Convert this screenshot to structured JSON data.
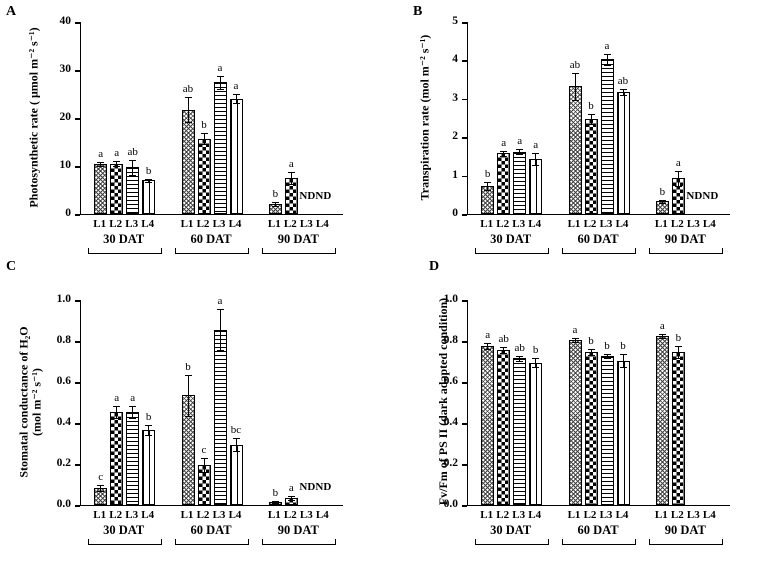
{
  "colors": {
    "foreground": "#000000",
    "background": "#ffffff"
  },
  "chart_data": [
    {
      "id": "A",
      "type": "bar",
      "panel_label": "A",
      "ylabel_lines": [
        "Photosynthetic rate ( μmol m⁻² s⁻¹)"
      ],
      "ylim": [
        0,
        40
      ],
      "yticks": [
        "0",
        "10",
        "20",
        "30",
        "40"
      ],
      "groups": [
        "30 DAT",
        "60 DAT",
        "90 DAT"
      ],
      "series": [
        "L1",
        "L2",
        "L3",
        "L4"
      ],
      "values": [
        [
          10.2,
          10.3,
          9.5,
          6.8
        ],
        [
          21.5,
          15.5,
          27.2,
          23.8
        ],
        [
          1.8,
          7.3,
          null,
          null
        ]
      ],
      "errors": [
        [
          0.5,
          0.5,
          1.6,
          0.3
        ],
        [
          2.6,
          1.2,
          1.3,
          0.9
        ],
        [
          0.4,
          1.3,
          null,
          null
        ]
      ],
      "letters": [
        [
          "a",
          "a",
          "ab",
          "b"
        ],
        [
          "ab",
          "b",
          "a",
          "a"
        ],
        [
          "b",
          "a",
          "ND",
          "ND"
        ]
      ]
    },
    {
      "id": "B",
      "type": "bar",
      "panel_label": "B",
      "ylabel_lines": [
        "Transpiration rate (mol m⁻² s⁻¹)"
      ],
      "ylim": [
        0,
        5
      ],
      "yticks": [
        "0",
        "1",
        "2",
        "3",
        "4",
        "5"
      ],
      "groups": [
        "30 DAT",
        "60 DAT",
        "90 DAT"
      ],
      "series": [
        "L1",
        "L2",
        "L3",
        "L4"
      ],
      "values": [
        [
          0.7,
          1.55,
          1.6,
          1.4
        ],
        [
          3.3,
          2.45,
          4.0,
          3.15
        ],
        [
          0.3,
          0.9,
          null,
          null
        ]
      ],
      "errors": [
        [
          0.1,
          0.07,
          0.07,
          0.15
        ],
        [
          0.35,
          0.12,
          0.15,
          0.08
        ],
        [
          0.05,
          0.2,
          null,
          null
        ]
      ],
      "letters": [
        [
          "b",
          "a",
          "a",
          "a"
        ],
        [
          "ab",
          "b",
          "a",
          "ab"
        ],
        [
          "b",
          "a",
          "ND",
          "ND"
        ]
      ]
    },
    {
      "id": "C",
      "type": "bar",
      "panel_label": "C",
      "ylabel_lines": [
        "Stomatal conductance of H₂O",
        "(mol m⁻² s⁻¹)"
      ],
      "ylim": [
        0,
        1.0
      ],
      "yticks": [
        "0.0",
        "0.2",
        "0.4",
        "0.6",
        "0.8",
        "1.0"
      ],
      "groups": [
        "30 DAT",
        "60 DAT",
        "90 DAT"
      ],
      "series": [
        "L1",
        "L2",
        "L3",
        "L4"
      ],
      "values": [
        [
          0.08,
          0.45,
          0.45,
          0.36
        ],
        [
          0.53,
          0.19,
          0.85,
          0.29
        ],
        [
          0.01,
          0.03,
          null,
          null
        ]
      ],
      "errors": [
        [
          0.015,
          0.03,
          0.03,
          0.025
        ],
        [
          0.1,
          0.035,
          0.1,
          0.03
        ],
        [
          0.005,
          0.01,
          null,
          null
        ]
      ],
      "letters": [
        [
          "c",
          "a",
          "a",
          "b"
        ],
        [
          "b",
          "c",
          "a",
          "bc"
        ],
        [
          "b",
          "a",
          "ND",
          "ND"
        ]
      ]
    },
    {
      "id": "D",
      "type": "bar",
      "panel_label": "D",
      "ylabel_lines": [
        "Fv/Fm of PS II (dark adapted condition)"
      ],
      "ylim": [
        0,
        1.0
      ],
      "yticks": [
        "0.0",
        "0.2",
        "0.4",
        "0.6",
        "0.8",
        "1.0"
      ],
      "groups": [
        "30 DAT",
        "60 DAT",
        "90 DAT"
      ],
      "series": [
        "L1",
        "L2",
        "L3",
        "L4"
      ],
      "values": [
        [
          0.77,
          0.75,
          0.71,
          0.69
        ],
        [
          0.8,
          0.74,
          0.72,
          0.7
        ],
        [
          0.82,
          0.74,
          null,
          null
        ]
      ],
      "errors": [
        [
          0.015,
          0.015,
          0.01,
          0.02
        ],
        [
          0.01,
          0.015,
          0.01,
          0.03
        ],
        [
          0.01,
          0.03,
          null,
          null
        ]
      ],
      "letters": [
        [
          "a",
          "ab",
          "ab",
          "b"
        ],
        [
          "a",
          "b",
          "b",
          "b"
        ],
        [
          "a",
          "b",
          null,
          null
        ]
      ]
    }
  ]
}
